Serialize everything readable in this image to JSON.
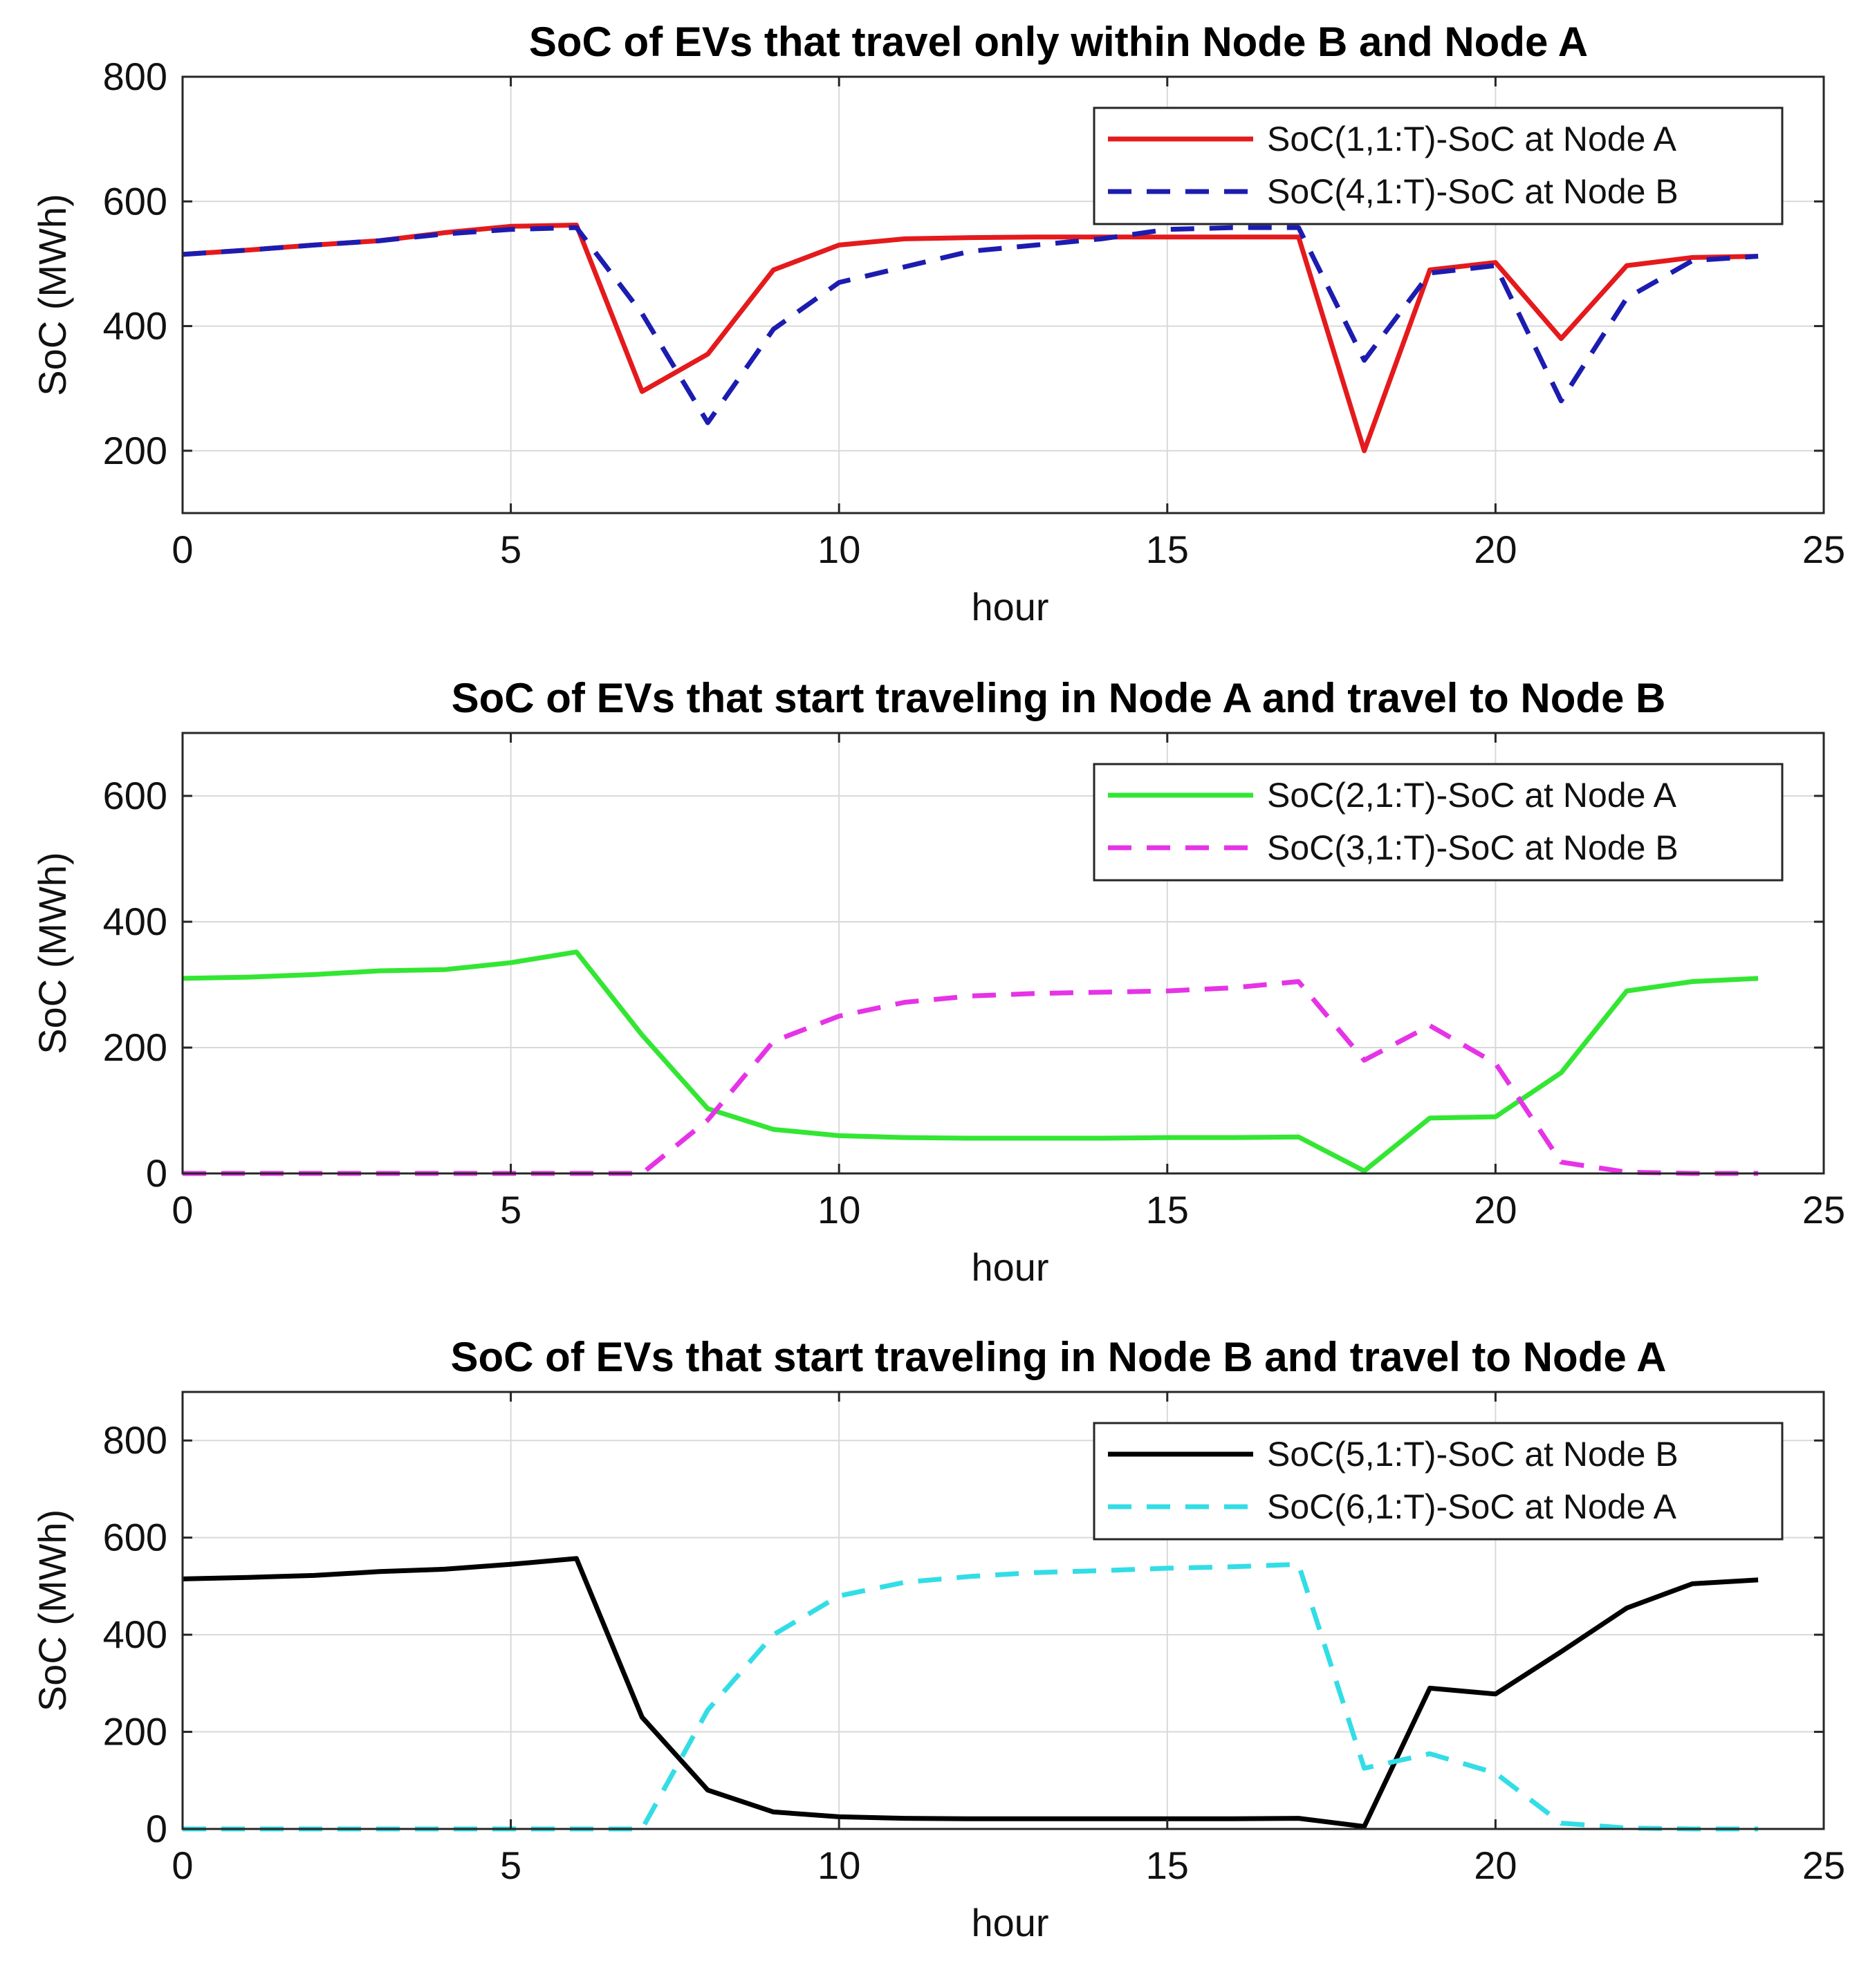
{
  "chart_data": [
    {
      "type": "line",
      "title": "SoC of EVs that travel only within Node B and Node A",
      "xlabel": "hour",
      "ylabel": "SoC (MWh)",
      "xlim": [
        0,
        25
      ],
      "ylim": [
        100,
        800
      ],
      "xticks": [
        0,
        5,
        10,
        15,
        20,
        25
      ],
      "yticks": [
        200,
        400,
        600,
        800
      ],
      "grid": true,
      "legend_position": "top-right",
      "series": [
        {
          "name": "SoC(1,1:T)-SoC at Node A",
          "color": "#e41a1c",
          "style": "solid",
          "x": [
            0,
            1,
            2,
            3,
            4,
            5,
            6,
            7,
            8,
            9,
            10,
            11,
            12,
            13,
            14,
            15,
            16,
            17,
            18,
            19,
            20,
            21,
            22,
            23,
            24
          ],
          "y": [
            515,
            522,
            530,
            537,
            550,
            560,
            562,
            295,
            355,
            490,
            530,
            540,
            542,
            543,
            543,
            543,
            543,
            543,
            200,
            490,
            502,
            380,
            497,
            510,
            512
          ]
        },
        {
          "name": "SoC(4,1:T)-SoC at Node B",
          "color": "#1c1cb0",
          "style": "dashed",
          "x": [
            0,
            1,
            2,
            3,
            4,
            5,
            6,
            7,
            8,
            9,
            10,
            11,
            12,
            13,
            14,
            15,
            16,
            17,
            18,
            19,
            20,
            21,
            22,
            23,
            24
          ],
          "y": [
            515,
            522,
            530,
            537,
            548,
            555,
            558,
            420,
            245,
            395,
            470,
            495,
            520,
            530,
            540,
            555,
            558,
            558,
            345,
            485,
            497,
            280,
            445,
            505,
            512
          ]
        }
      ]
    },
    {
      "type": "line",
      "title": "SoC of EVs that start traveling in Node A and travel to Node B",
      "xlabel": "hour",
      "ylabel": "SoC (MWh)",
      "xlim": [
        0,
        25
      ],
      "ylim": [
        0,
        700
      ],
      "xticks": [
        0,
        5,
        10,
        15,
        20,
        25
      ],
      "yticks": [
        0,
        200,
        400,
        600
      ],
      "grid": true,
      "legend_position": "top-right",
      "series": [
        {
          "name": "SoC(2,1:T)-SoC at Node A",
          "color": "#33e633",
          "style": "solid",
          "x": [
            0,
            1,
            2,
            3,
            4,
            5,
            6,
            7,
            8,
            9,
            10,
            11,
            12,
            13,
            14,
            15,
            16,
            17,
            18,
            19,
            20,
            21,
            22,
            23,
            24
          ],
          "y": [
            310,
            312,
            316,
            322,
            324,
            335,
            352,
            220,
            103,
            70,
            60,
            57,
            56,
            56,
            56,
            57,
            57,
            58,
            4,
            88,
            90,
            160,
            290,
            305,
            310
          ]
        },
        {
          "name": "SoC(3,1:T)-SoC at Node B",
          "color": "#e633e6",
          "style": "dashed",
          "x": [
            0,
            1,
            2,
            3,
            4,
            5,
            6,
            7,
            8,
            9,
            10,
            11,
            12,
            13,
            14,
            15,
            16,
            17,
            18,
            19,
            20,
            21,
            22,
            23,
            24
          ],
          "y": [
            0,
            0,
            0,
            0,
            0,
            0,
            0,
            0,
            85,
            210,
            250,
            272,
            282,
            286,
            288,
            290,
            295,
            305,
            180,
            235,
            175,
            18,
            2,
            0,
            0
          ]
        }
      ]
    },
    {
      "type": "line",
      "title": "SoC of EVs that start traveling in Node B and travel to Node A",
      "xlabel": "hour",
      "ylabel": "SoC (MWh)",
      "xlim": [
        0,
        25
      ],
      "ylim": [
        0,
        900
      ],
      "xticks": [
        0,
        5,
        10,
        15,
        20,
        25
      ],
      "yticks": [
        0,
        200,
        400,
        600,
        800
      ],
      "grid": true,
      "legend_position": "top-right",
      "series": [
        {
          "name": "SoC(5,1:T)-SoC at Node B",
          "color": "#000000",
          "style": "solid",
          "x": [
            0,
            1,
            2,
            3,
            4,
            5,
            6,
            7,
            8,
            9,
            10,
            11,
            12,
            13,
            14,
            15,
            16,
            17,
            18,
            19,
            20,
            21,
            22,
            23,
            24
          ],
          "y": [
            515,
            518,
            522,
            530,
            535,
            545,
            557,
            230,
            80,
            35,
            25,
            22,
            21,
            21,
            21,
            21,
            21,
            22,
            5,
            290,
            278,
            365,
            455,
            505,
            513
          ]
        },
        {
          "name": "SoC(6,1:T)-SoC at Node A",
          "color": "#33dde6",
          "style": "dashed",
          "x": [
            0,
            1,
            2,
            3,
            4,
            5,
            6,
            7,
            8,
            9,
            10,
            11,
            12,
            13,
            14,
            15,
            16,
            17,
            18,
            19,
            20,
            21,
            22,
            23,
            24
          ],
          "y": [
            0,
            0,
            0,
            0,
            0,
            0,
            0,
            0,
            245,
            400,
            480,
            508,
            520,
            528,
            532,
            537,
            540,
            545,
            125,
            155,
            115,
            12,
            2,
            0,
            0
          ]
        }
      ]
    }
  ]
}
